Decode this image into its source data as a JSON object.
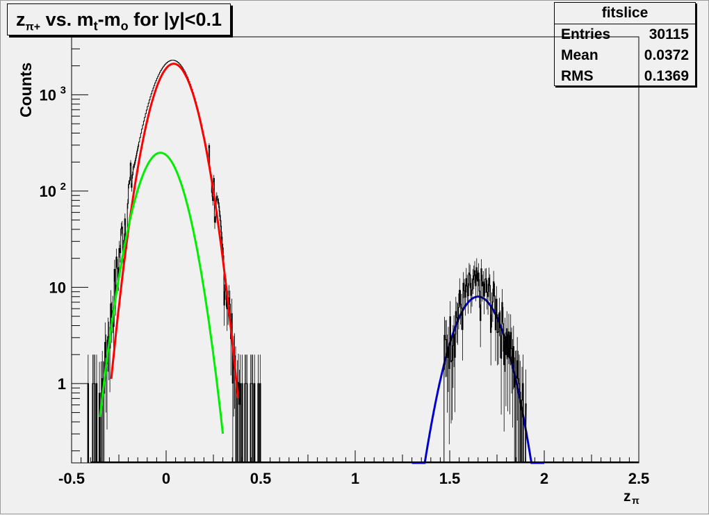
{
  "title": {
    "main": "z",
    "sub": "π+",
    "rest": " vs. m",
    "sub2": "t",
    "mid": "-m",
    "sub3": "o",
    "tail": " for |y|<0.1"
  },
  "stats": {
    "header": "fitslice",
    "rows": [
      {
        "label": "Entries",
        "value": "30115"
      },
      {
        "label": "Mean",
        "value": "0.0372"
      },
      {
        "label": "RMS",
        "value": "0.1369"
      }
    ]
  },
  "chart_data": {
    "type": "line",
    "xlabel": "z",
    "xlabel_sub": "π",
    "ylabel": "Counts",
    "xlim": [
      -0.5,
      2.5
    ],
    "ylim_log": [
      0.15,
      4000
    ],
    "y_scale": "log",
    "x_ticks": [
      "-0.5",
      "0",
      "0.5",
      "1",
      "1.5",
      "2",
      "2.5"
    ],
    "y_tick_labels": [
      {
        "value": 1,
        "label": "1"
      },
      {
        "value": 10,
        "label": "10"
      },
      {
        "value": 100,
        "label": "10",
        "exp": "2"
      },
      {
        "value": 1000,
        "label": "10",
        "exp": "3"
      }
    ],
    "series": [
      {
        "color": "#000000",
        "kind": "histogram",
        "gaussians": [
          {
            "amp": 2100,
            "mean": 0.04,
            "sigma": 0.085
          },
          {
            "amp": 250,
            "mean": -0.03,
            "sigma": 0.09
          }
        ],
        "range": [
          -0.42,
          0.5
        ]
      },
      {
        "color": "#ff0000",
        "kind": "fit",
        "amp": 2100,
        "mean": 0.04,
        "sigma": 0.085,
        "range": [
          -0.29,
          0.38
        ]
      },
      {
        "color": "#00ee00",
        "kind": "fit",
        "amp": 250,
        "mean": -0.03,
        "sigma": 0.09,
        "range": [
          -0.35,
          0.3
        ]
      },
      {
        "color": "#0000cc",
        "kind": "fit",
        "amp": 8,
        "mean": 1.65,
        "sigma": 0.1,
        "range": [
          1.3,
          2.0
        ]
      },
      {
        "color": "#000000",
        "kind": "histogram2",
        "gaussians": [
          {
            "amp": 9,
            "mean": 1.65,
            "sigma": 0.1
          }
        ],
        "range": [
          1.47,
          1.9
        ]
      }
    ],
    "colors": {
      "background": "#f0f0f0",
      "axis": "#000000"
    }
  }
}
